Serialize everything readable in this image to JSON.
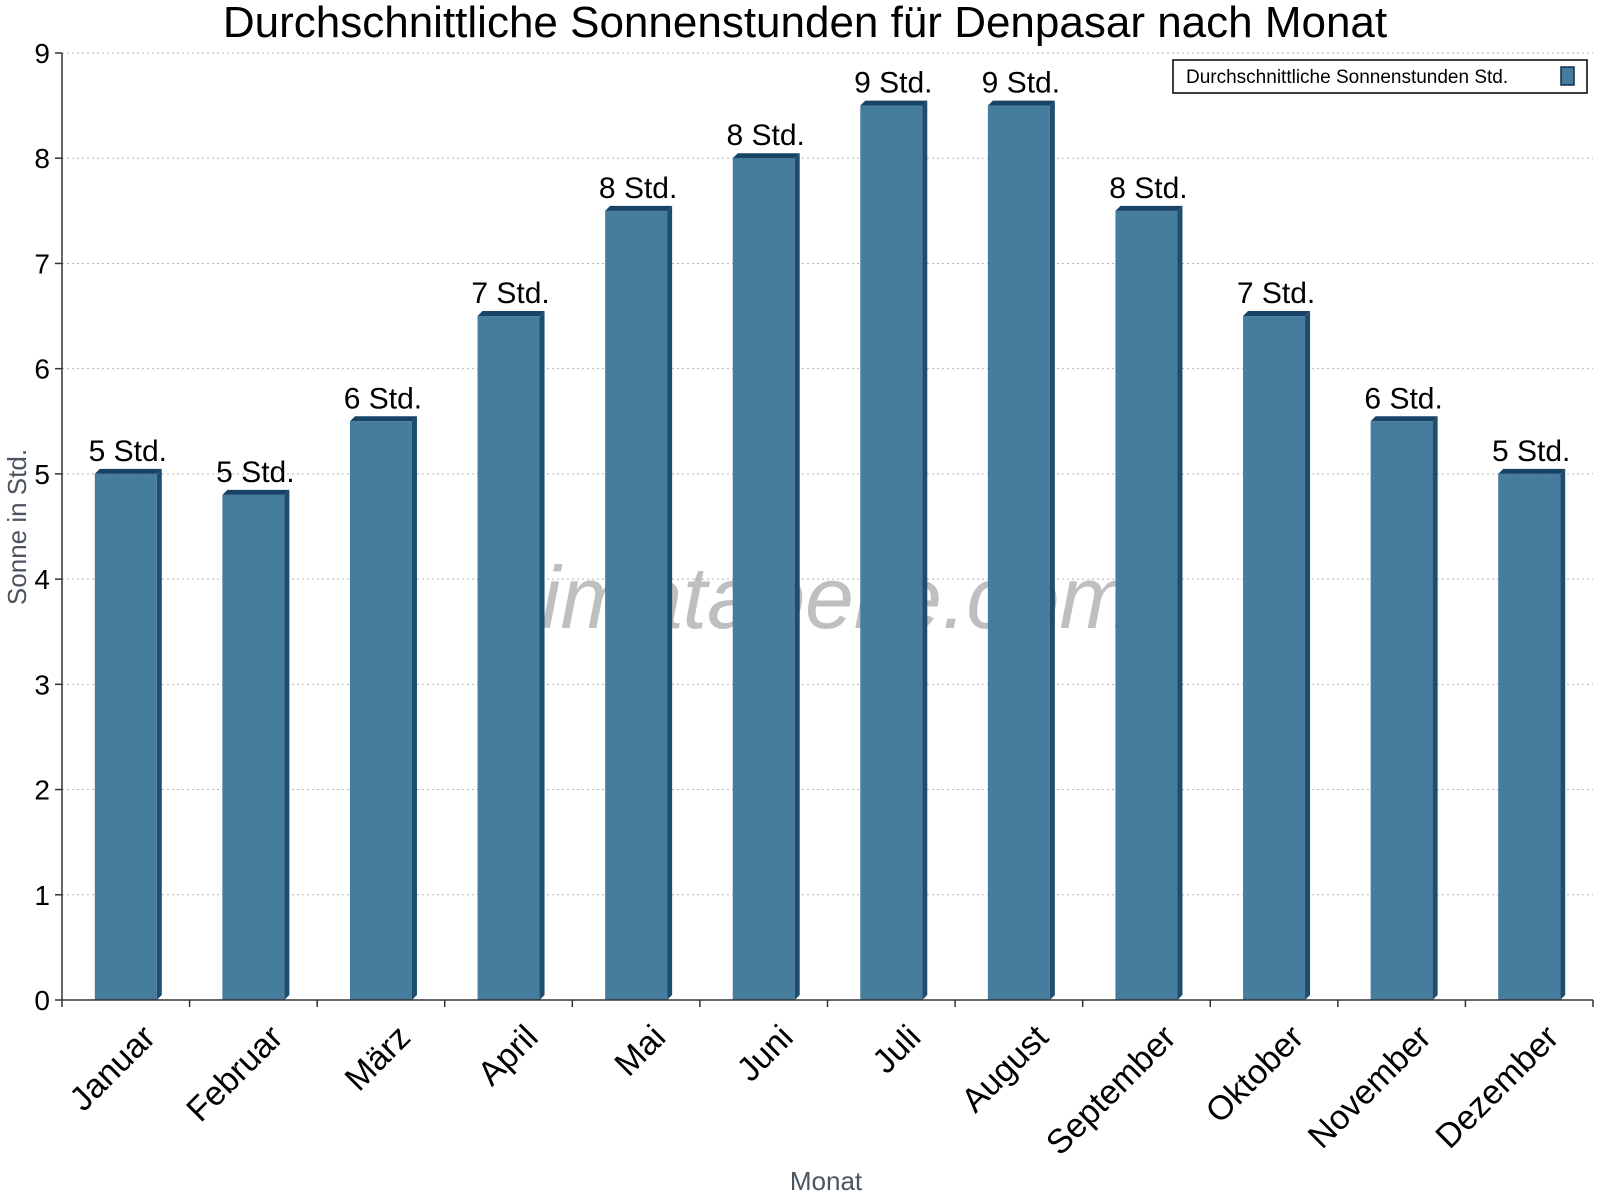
{
  "chart_data": {
    "type": "bar",
    "title": "Durchschnittliche Sonnenstunden für Denpasar nach Monat",
    "xlabel": "Monat",
    "ylabel": "Sonne in Std.",
    "ylim": [
      0,
      9
    ],
    "yticks": [
      0,
      1,
      2,
      3,
      4,
      5,
      6,
      7,
      8,
      9
    ],
    "grid": true,
    "legend_position": "top-right",
    "categories": [
      "Januar",
      "Februar",
      "März",
      "April",
      "Mai",
      "Juni",
      "Juli",
      "August",
      "September",
      "Oktober",
      "November",
      "Dezember"
    ],
    "series": [
      {
        "name": "Durchschnittliche Sonnenstunden Std.",
        "color": "#467c9e",
        "values": [
          5.0,
          4.8,
          5.5,
          6.5,
          7.5,
          8.0,
          8.5,
          8.5,
          7.5,
          6.5,
          5.5,
          5.0
        ],
        "labels": [
          "5 Std.",
          "5 Std.",
          "6 Std.",
          "7 Std.",
          "8 Std.",
          "8 Std.",
          "9 Std.",
          "9 Std.",
          "8 Std.",
          "7 Std.",
          "6 Std.",
          "5 Std."
        ]
      }
    ],
    "watermark": "klimatabelle.com"
  }
}
